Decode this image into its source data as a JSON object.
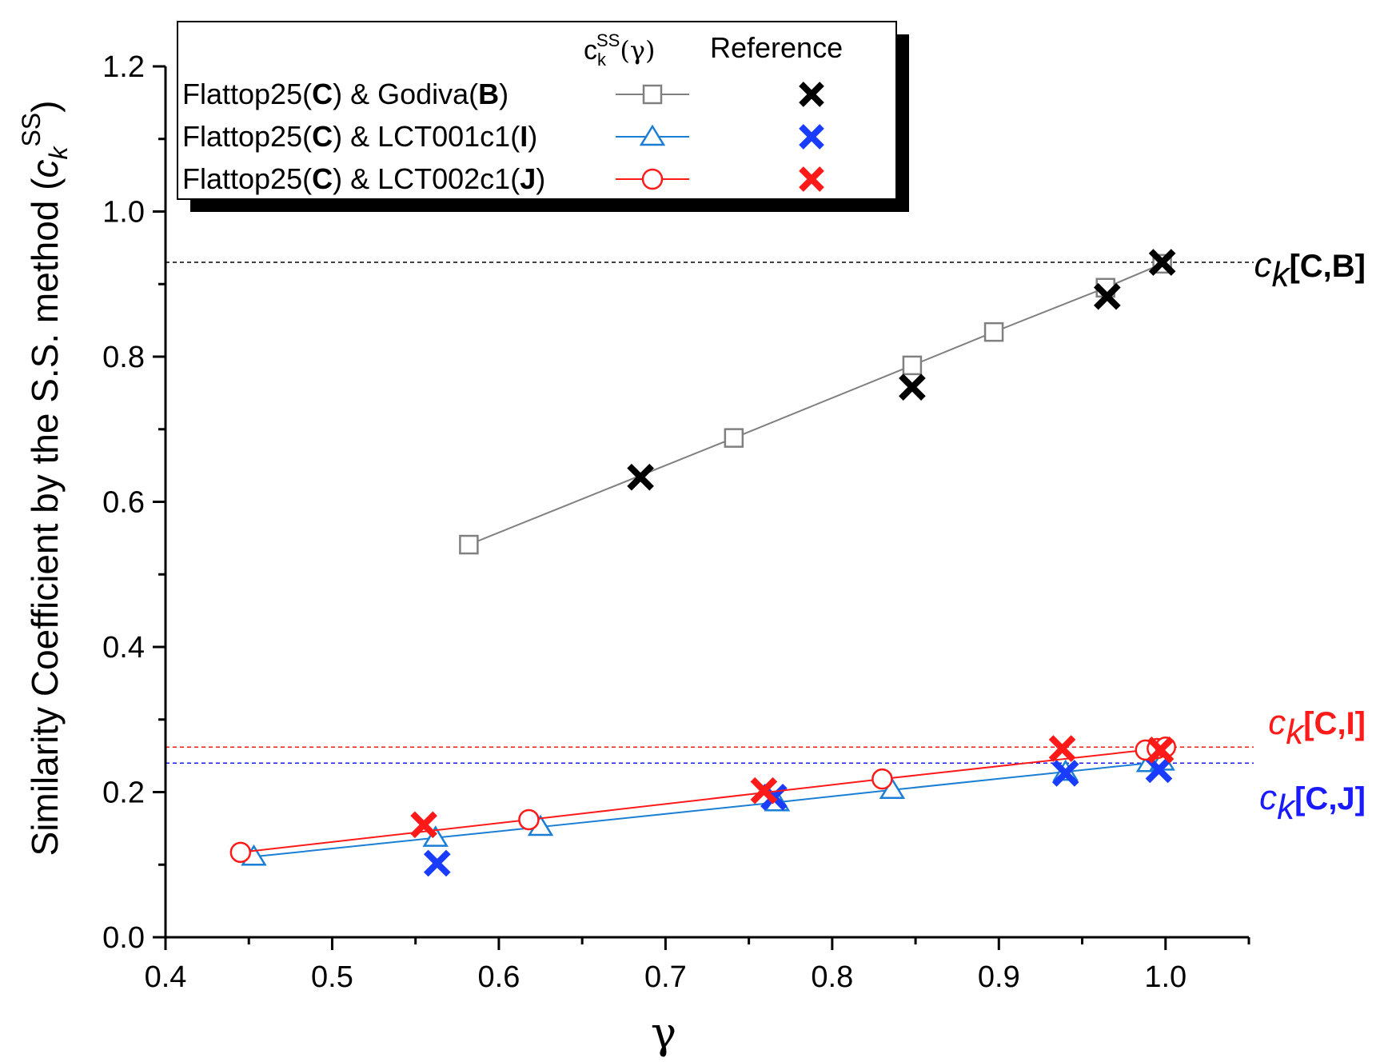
{
  "chart_data": {
    "type": "scatter",
    "title": "",
    "xlabel": "γ",
    "ylabel_main": "Similarity Coefficient by the S.S. method (",
    "ylabel_symbol": "c",
    "ylabel_sub": "k",
    "ylabel_sup": "SS",
    "ylabel_close": ")",
    "xlim": [
      0.4,
      1.05
    ],
    "ylim": [
      0.0,
      1.2
    ],
    "xticks": [
      0.4,
      0.5,
      0.6,
      0.7,
      0.8,
      0.9,
      1.0
    ],
    "xtick_labels": [
      "0.4",
      "0.5",
      "0.6",
      "0.7",
      "0.8",
      "0.9",
      "1.0"
    ],
    "yticks": [
      0.0,
      0.2,
      0.4,
      0.6,
      0.8,
      1.0,
      1.2
    ],
    "ytick_labels": [
      "0.0",
      "0.2",
      "0.4",
      "0.6",
      "0.8",
      "1.0",
      "1.2"
    ],
    "legend": {
      "header_col1_main": "c",
      "header_col1_sub": "k",
      "header_col1_sup": "SS",
      "header_col1_arg": "(γ)",
      "header_col2": "Reference",
      "placement": "top-left"
    },
    "series": [
      {
        "name_prefix": "Flattop25(",
        "name_bold1": "C",
        "name_mid": ") & Godiva(",
        "name_bold2": "B",
        "name_suffix": ")",
        "color": "#808080",
        "ref_color": "#000000",
        "marker": "square",
        "curve": {
          "x": [
            0.582,
            0.741,
            0.848,
            0.897,
            0.964,
            0.998
          ],
          "y": [
            0.541,
            0.688,
            0.788,
            0.834,
            0.895,
            0.928
          ]
        },
        "reference": {
          "x": [
            0.685,
            0.848,
            0.965,
            0.998
          ],
          "y": [
            0.634,
            0.758,
            0.883,
            0.93
          ]
        }
      },
      {
        "name_prefix": "Flattop25(",
        "name_bold1": "C",
        "name_mid": ") & LCT001c1(",
        "name_bold2": "I",
        "name_suffix": ")",
        "color": "#1a7fd4",
        "ref_color": "#1a3cff",
        "marker": "triangle",
        "curve": {
          "x": [
            0.453,
            0.562,
            0.625,
            0.767,
            0.836,
            0.94,
            0.99,
            0.998
          ],
          "y": [
            0.111,
            0.137,
            0.152,
            0.186,
            0.203,
            0.228,
            0.24,
            0.242
          ]
        },
        "reference": {
          "x": [
            0.563,
            0.765,
            0.94,
            0.996
          ],
          "y": [
            0.102,
            0.193,
            0.226,
            0.231
          ]
        }
      },
      {
        "name_prefix": "Flattop25(",
        "name_bold1": "C",
        "name_mid": ") & LCT002c1(",
        "name_bold2": "J",
        "name_suffix": ")",
        "color": "#ff1a1a",
        "ref_color": "#ff1a1a",
        "marker": "circle",
        "curve": {
          "x": [
            0.445,
            0.618,
            0.83,
            0.988,
            0.995,
            1.0
          ],
          "y": [
            0.117,
            0.162,
            0.218,
            0.258,
            0.26,
            0.262
          ]
        },
        "reference": {
          "x": [
            0.555,
            0.759,
            0.938,
            0.997
          ],
          "y": [
            0.155,
            0.202,
            0.26,
            0.258
          ]
        }
      }
    ],
    "reference_lines": [
      {
        "y": 0.93,
        "color": "#000000",
        "label_c": "c",
        "label_k": "k",
        "label_br": "[C,B]"
      },
      {
        "y": 0.262,
        "color": "#ff1a1a",
        "label_c": "c",
        "label_k": "k",
        "label_br": "[C,I]"
      },
      {
        "y": 0.24,
        "color": "#1a1aff",
        "label_c": "c",
        "label_k": "k",
        "label_br": "[C,J]"
      }
    ]
  }
}
